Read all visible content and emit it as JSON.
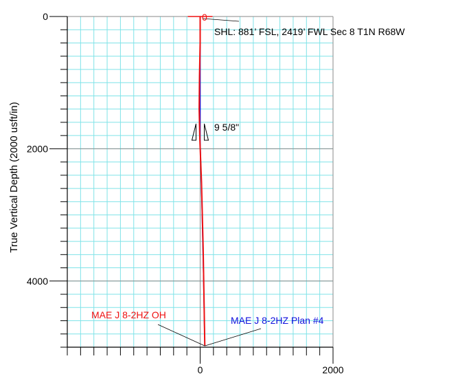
{
  "chart_data": {
    "type": "line",
    "title": "",
    "xlabel": "",
    "ylabel": "True Vertical Depth (2000 usft/in)",
    "xlim": [
      -2000,
      2000
    ],
    "ylim": [
      5000,
      0
    ],
    "y_axis_inverted": true,
    "grid": true,
    "x_ticks": [
      0,
      2000
    ],
    "y_ticks": [
      0,
      2000,
      4000
    ],
    "series": [
      {
        "name": "MAE J 8-2HZ OH",
        "color": "#ee1111",
        "x": [
          0,
          0,
          -10,
          -15,
          -5,
          20,
          45,
          70
        ],
        "y": [
          0,
          400,
          900,
          1400,
          1850,
          2500,
          3500,
          4980
        ]
      },
      {
        "name": "MAE J 8-2HZ Plan #4",
        "color": "#1111dd",
        "x": [
          0,
          0,
          25,
          50,
          70
        ],
        "y": [
          0,
          1900,
          2800,
          3900,
          4980
        ]
      }
    ],
    "annotations": {
      "surface_marker": "0",
      "shl": "SHL: 881’ FSL, 2419’ FWL Sec 8 T1N R68W",
      "casing": "9 5/8\""
    }
  }
}
